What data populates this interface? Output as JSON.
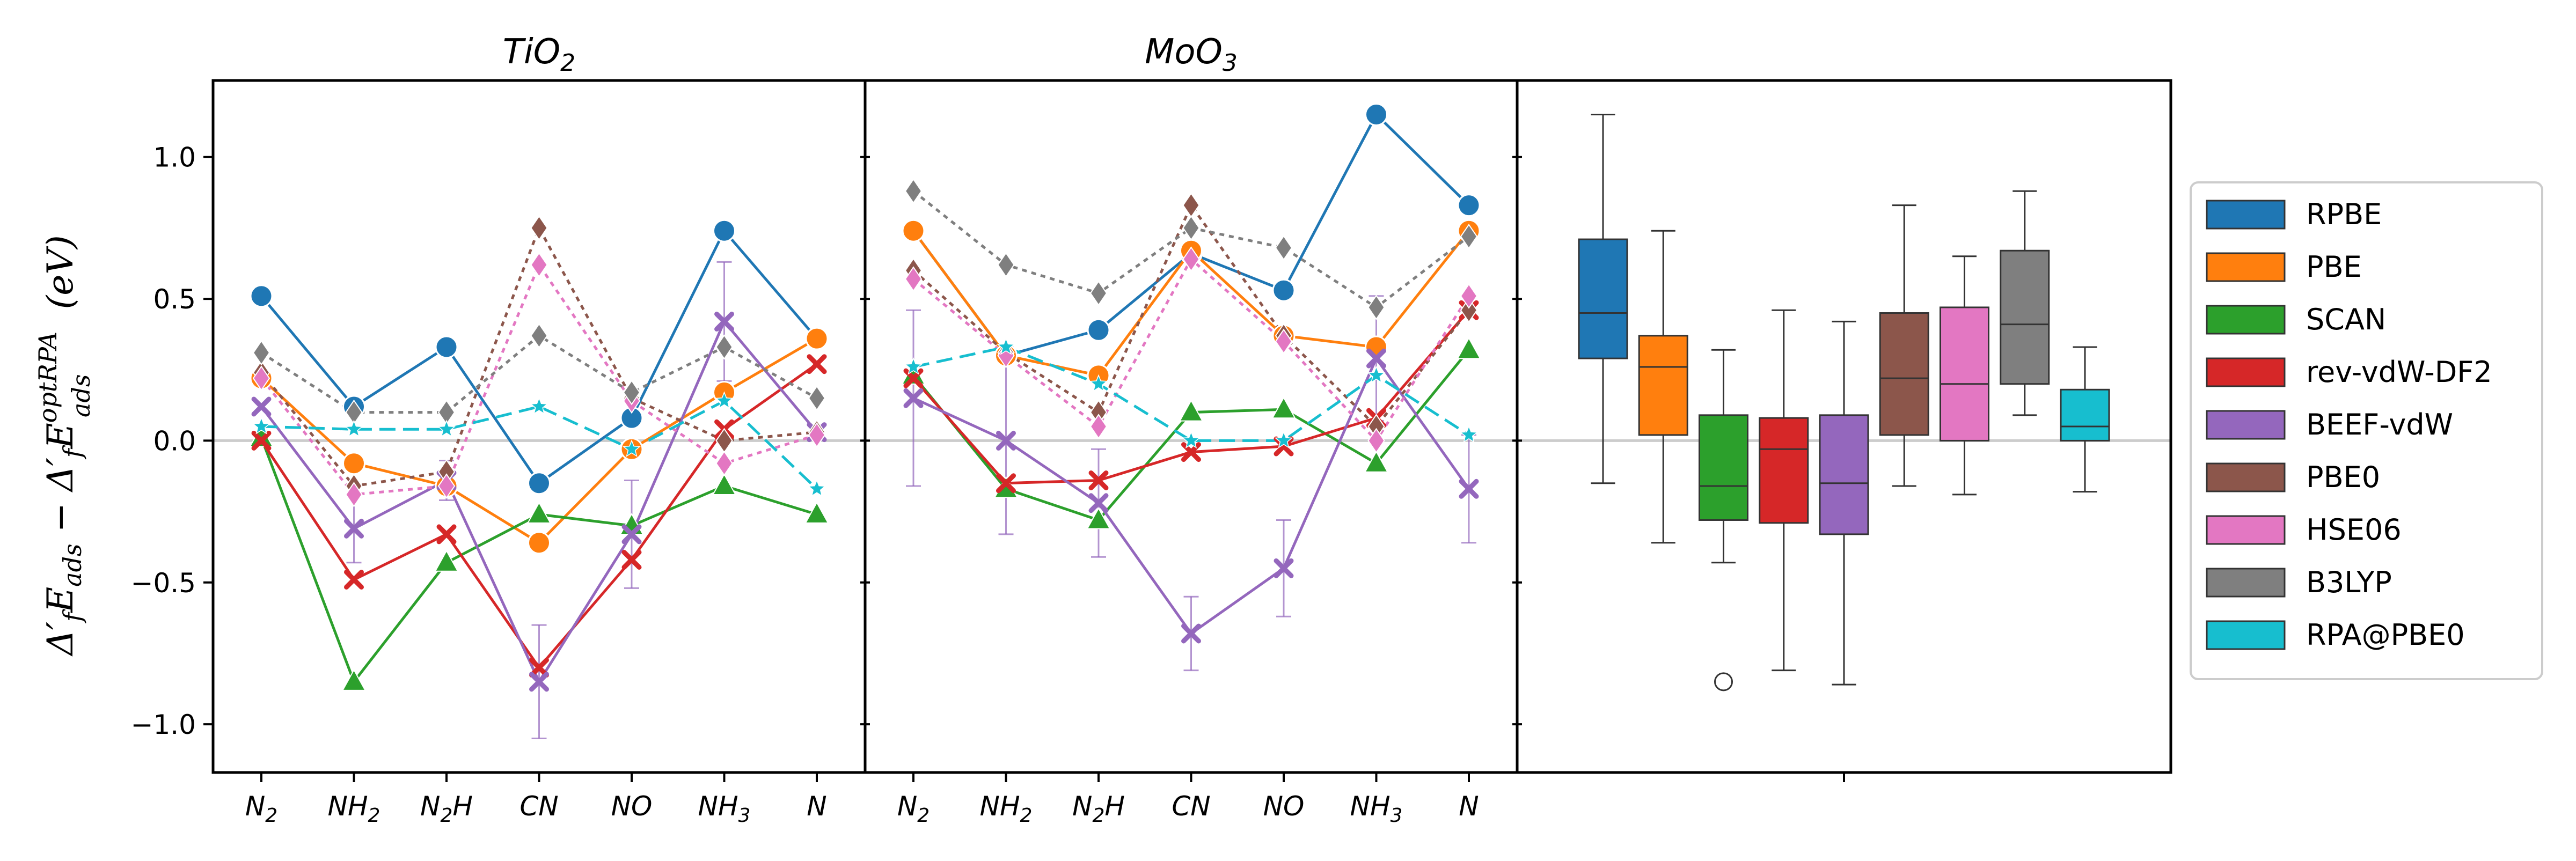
{
  "chart_data": {
    "type": "line",
    "categories": [
      "N2",
      "NH2",
      "N2H",
      "CN",
      "NO",
      "NH3",
      "N"
    ],
    "category_labels": [
      {
        "base": "N",
        "sub": "2"
      },
      {
        "base": "NH",
        "sub": "2"
      },
      {
        "base": "N",
        "sub": "2",
        "tail": "H"
      },
      {
        "base": "CN",
        "sub": ""
      },
      {
        "base": "NO",
        "sub": ""
      },
      {
        "base": "NH",
        "sub": "3"
      },
      {
        "base": "N",
        "sub": ""
      }
    ],
    "ylabel": "Δ′fEads − Δ′fEads^optRPA (eV)",
    "ylim": [
      -1.17,
      1.27
    ],
    "yticks": [
      -1.0,
      -0.5,
      0.0,
      0.5,
      1.0
    ],
    "ytick_labels": [
      "−1.0",
      "−0.5",
      "0.0",
      "0.5",
      "1.0"
    ],
    "zero_line": true,
    "methods": [
      {
        "name": "RPBE",
        "color": "#1f77b4",
        "marker": "circle",
        "dash": "solid"
      },
      {
        "name": "PBE",
        "color": "#ff7f0e",
        "marker": "circle",
        "dash": "solid"
      },
      {
        "name": "SCAN",
        "color": "#2ca02c",
        "marker": "triangle",
        "dash": "solid"
      },
      {
        "name": "rev-vdW-DF2",
        "color": "#d62728",
        "marker": "x",
        "dash": "solid"
      },
      {
        "name": "BEEF-vdW",
        "color": "#9467bd",
        "marker": "x",
        "dash": "solid"
      },
      {
        "name": "PBE0",
        "color": "#8c564b",
        "marker": "diamond",
        "dash": "dotted"
      },
      {
        "name": "HSE06",
        "color": "#e377c2",
        "marker": "diamond",
        "dash": "dotted"
      },
      {
        "name": "B3LYP",
        "color": "#7f7f7f",
        "marker": "diamond",
        "dash": "dotted"
      },
      {
        "name": "RPA@PBE0",
        "color": "#17becf",
        "marker": "star",
        "dash": "dashed"
      }
    ],
    "panels": [
      {
        "title_base": "TiO",
        "title_sub": "2",
        "series": [
          {
            "name": "RPBE",
            "values": [
              0.51,
              0.12,
              0.33,
              -0.15,
              0.08,
              0.74,
              0.36
            ]
          },
          {
            "name": "PBE",
            "values": [
              0.22,
              -0.08,
              -0.16,
              -0.36,
              -0.03,
              0.17,
              0.36
            ]
          },
          {
            "name": "SCAN",
            "values": [
              0.01,
              -0.85,
              -0.43,
              -0.26,
              -0.3,
              -0.16,
              -0.26
            ]
          },
          {
            "name": "rev-vdW-DF2",
            "values": [
              0.0,
              -0.49,
              -0.33,
              -0.8,
              -0.42,
              0.04,
              0.27
            ]
          },
          {
            "name": "BEEF-vdW",
            "values": [
              0.12,
              -0.31,
              -0.14,
              -0.85,
              -0.33,
              0.42,
              0.03
            ],
            "errors": [
              null,
              0.12,
              0.07,
              0.2,
              0.19,
              0.21,
              null
            ]
          },
          {
            "name": "PBE0",
            "values": [
              0.24,
              -0.16,
              -0.11,
              0.75,
              0.15,
              0.0,
              0.03
            ]
          },
          {
            "name": "HSE06",
            "values": [
              0.22,
              -0.19,
              -0.16,
              0.62,
              0.14,
              -0.08,
              0.02
            ]
          },
          {
            "name": "B3LYP",
            "values": [
              0.31,
              0.1,
              0.1,
              0.37,
              0.17,
              0.33,
              0.15
            ]
          },
          {
            "name": "RPA@PBE0",
            "values": [
              0.05,
              0.04,
              0.04,
              0.12,
              -0.03,
              0.14,
              -0.17
            ]
          }
        ]
      },
      {
        "title_base": "MoO",
        "title_sub": "3",
        "series": [
          {
            "name": "RPBE",
            "values": [
              0.74,
              0.3,
              0.39,
              0.66,
              0.53,
              1.15,
              0.83
            ]
          },
          {
            "name": "PBE",
            "values": [
              0.74,
              0.3,
              0.23,
              0.67,
              0.37,
              0.33,
              0.74
            ]
          },
          {
            "name": "SCAN",
            "values": [
              0.23,
              -0.17,
              -0.28,
              0.1,
              0.11,
              -0.08,
              0.32
            ]
          },
          {
            "name": "rev-vdW-DF2",
            "values": [
              0.22,
              -0.15,
              -0.14,
              -0.04,
              -0.02,
              0.08,
              0.46
            ]
          },
          {
            "name": "BEEF-vdW",
            "values": [
              0.15,
              0.0,
              -0.22,
              -0.68,
              -0.45,
              0.29,
              -0.17
            ],
            "errors": [
              0.31,
              0.33,
              0.19,
              0.13,
              0.17,
              0.22,
              0.19
            ]
          },
          {
            "name": "PBE0",
            "values": [
              0.6,
              0.31,
              0.1,
              0.83,
              0.37,
              0.05,
              0.46
            ]
          },
          {
            "name": "HSE06",
            "values": [
              0.57,
              0.3,
              0.05,
              0.64,
              0.35,
              0.0,
              0.51
            ]
          },
          {
            "name": "B3LYP",
            "values": [
              0.88,
              0.62,
              0.52,
              0.75,
              0.68,
              0.47,
              0.72
            ]
          },
          {
            "name": "RPA@PBE0",
            "values": [
              0.26,
              0.33,
              0.2,
              0.0,
              0.0,
              0.23,
              0.02
            ]
          }
        ]
      }
    ],
    "boxplot": {
      "type": "box",
      "boxes": [
        {
          "name": "RPBE",
          "min": -0.15,
          "q1": 0.29,
          "median": 0.45,
          "q3": 0.71,
          "max": 1.15,
          "outliers": []
        },
        {
          "name": "PBE",
          "min": -0.36,
          "q1": 0.02,
          "median": 0.26,
          "q3": 0.37,
          "max": 0.74,
          "outliers": []
        },
        {
          "name": "SCAN",
          "min": -0.43,
          "q1": -0.28,
          "median": -0.16,
          "q3": 0.09,
          "max": 0.32,
          "outliers": [
            -0.85
          ]
        },
        {
          "name": "rev-vdW-DF2",
          "min": -0.81,
          "q1": -0.29,
          "median": -0.03,
          "q3": 0.08,
          "max": 0.46,
          "outliers": []
        },
        {
          "name": "BEEF-vdW",
          "min": -0.86,
          "q1": -0.33,
          "median": -0.15,
          "q3": 0.09,
          "max": 0.42,
          "outliers": []
        },
        {
          "name": "PBE0",
          "min": -0.16,
          "q1": 0.02,
          "median": 0.22,
          "q3": 0.45,
          "max": 0.83,
          "outliers": []
        },
        {
          "name": "HSE06",
          "min": -0.19,
          "q1": 0.0,
          "median": 0.2,
          "q3": 0.47,
          "max": 0.65,
          "outliers": []
        },
        {
          "name": "B3LYP",
          "min": 0.09,
          "q1": 0.2,
          "median": 0.41,
          "q3": 0.67,
          "max": 0.88,
          "outliers": []
        },
        {
          "name": "RPA@PBE0",
          "min": -0.18,
          "q1": 0.0,
          "median": 0.05,
          "q3": 0.18,
          "max": 0.33,
          "outliers": []
        }
      ]
    },
    "legend": {
      "position": "right",
      "entries": [
        "RPBE",
        "PBE",
        "SCAN",
        "rev-vdW-DF2",
        "BEEF-vdW",
        "PBE0",
        "HSE06",
        "B3LYP",
        "RPA@PBE0"
      ]
    }
  }
}
